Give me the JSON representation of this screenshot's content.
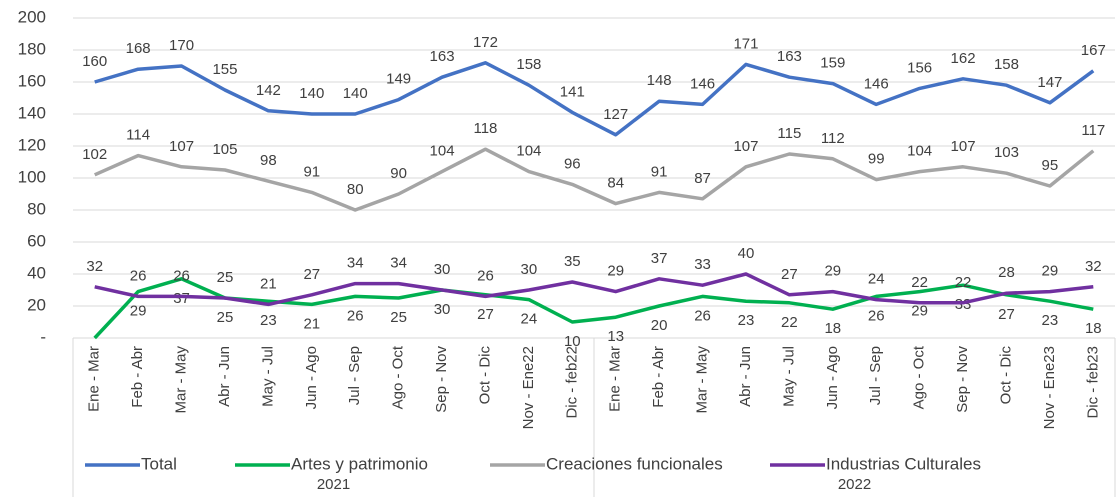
{
  "chart_data": {
    "type": "line",
    "categories": [
      "Ene - Mar",
      "Feb - Abr",
      "Mar - May",
      "Abr - Jun",
      "May - Jul",
      "Jun - Ago",
      "Jul - Sep",
      "Ago - Oct",
      "Sep - Nov",
      "Oct - Dic",
      "Nov - Ene22",
      "Dic - feb22",
      "Ene - Mar",
      "Feb - Abr",
      "Mar - May",
      "Abr - Jun",
      "May - Jul",
      "Jun - Ago",
      "Jul - Sep",
      "Ago - Oct",
      "Sep - Nov",
      "Oct - Dic",
      "Nov - Ene23",
      "Dic - feb23"
    ],
    "groups": [
      {
        "label": "2021",
        "size": 12
      },
      {
        "label": "2022",
        "size": 12
      }
    ],
    "series": [
      {
        "name": "Total",
        "color": "#4472c4",
        "label_position": "above",
        "values": [
          160,
          168,
          170,
          155,
          142,
          140,
          140,
          149,
          163,
          172,
          158,
          141,
          127,
          148,
          146,
          171,
          163,
          159,
          146,
          156,
          162,
          158,
          147,
          167
        ]
      },
      {
        "name": "Artes y patrimonio",
        "color": "#00b050",
        "label_position": "below",
        "values": [
          0,
          29,
          37,
          25,
          23,
          21,
          26,
          25,
          30,
          27,
          24,
          10,
          13,
          20,
          26,
          23,
          22,
          18,
          26,
          29,
          33,
          27,
          23,
          18
        ],
        "value_labels": [
          null,
          "29",
          "37",
          "25",
          "23",
          "21",
          "26",
          "25",
          "30",
          "27",
          "24",
          "10",
          "13",
          "20",
          "26",
          "23",
          "22",
          "18",
          "26",
          "29",
          "33",
          "27",
          "23",
          "18"
        ]
      },
      {
        "name": "Creaciones funcionales",
        "color": "#a5a5a5",
        "label_position": "above",
        "values": [
          102,
          114,
          107,
          105,
          98,
          91,
          80,
          90,
          104,
          118,
          104,
          96,
          84,
          91,
          87,
          107,
          115,
          112,
          99,
          104,
          107,
          103,
          95,
          117
        ]
      },
      {
        "name": "Industrias Culturales",
        "color": "#7030a0",
        "label_position": "above",
        "values": [
          32,
          26,
          26,
          25,
          21,
          27,
          34,
          34,
          30,
          26,
          30,
          35,
          29,
          37,
          33,
          40,
          27,
          29,
          24,
          22,
          22,
          28,
          29,
          32
        ]
      }
    ],
    "ylim": [
      0,
      200
    ],
    "yticks": [
      {
        "value": 0,
        "label": "-"
      },
      20,
      40,
      60,
      80,
      100,
      120,
      140,
      160,
      180,
      200
    ],
    "grid": true
  }
}
